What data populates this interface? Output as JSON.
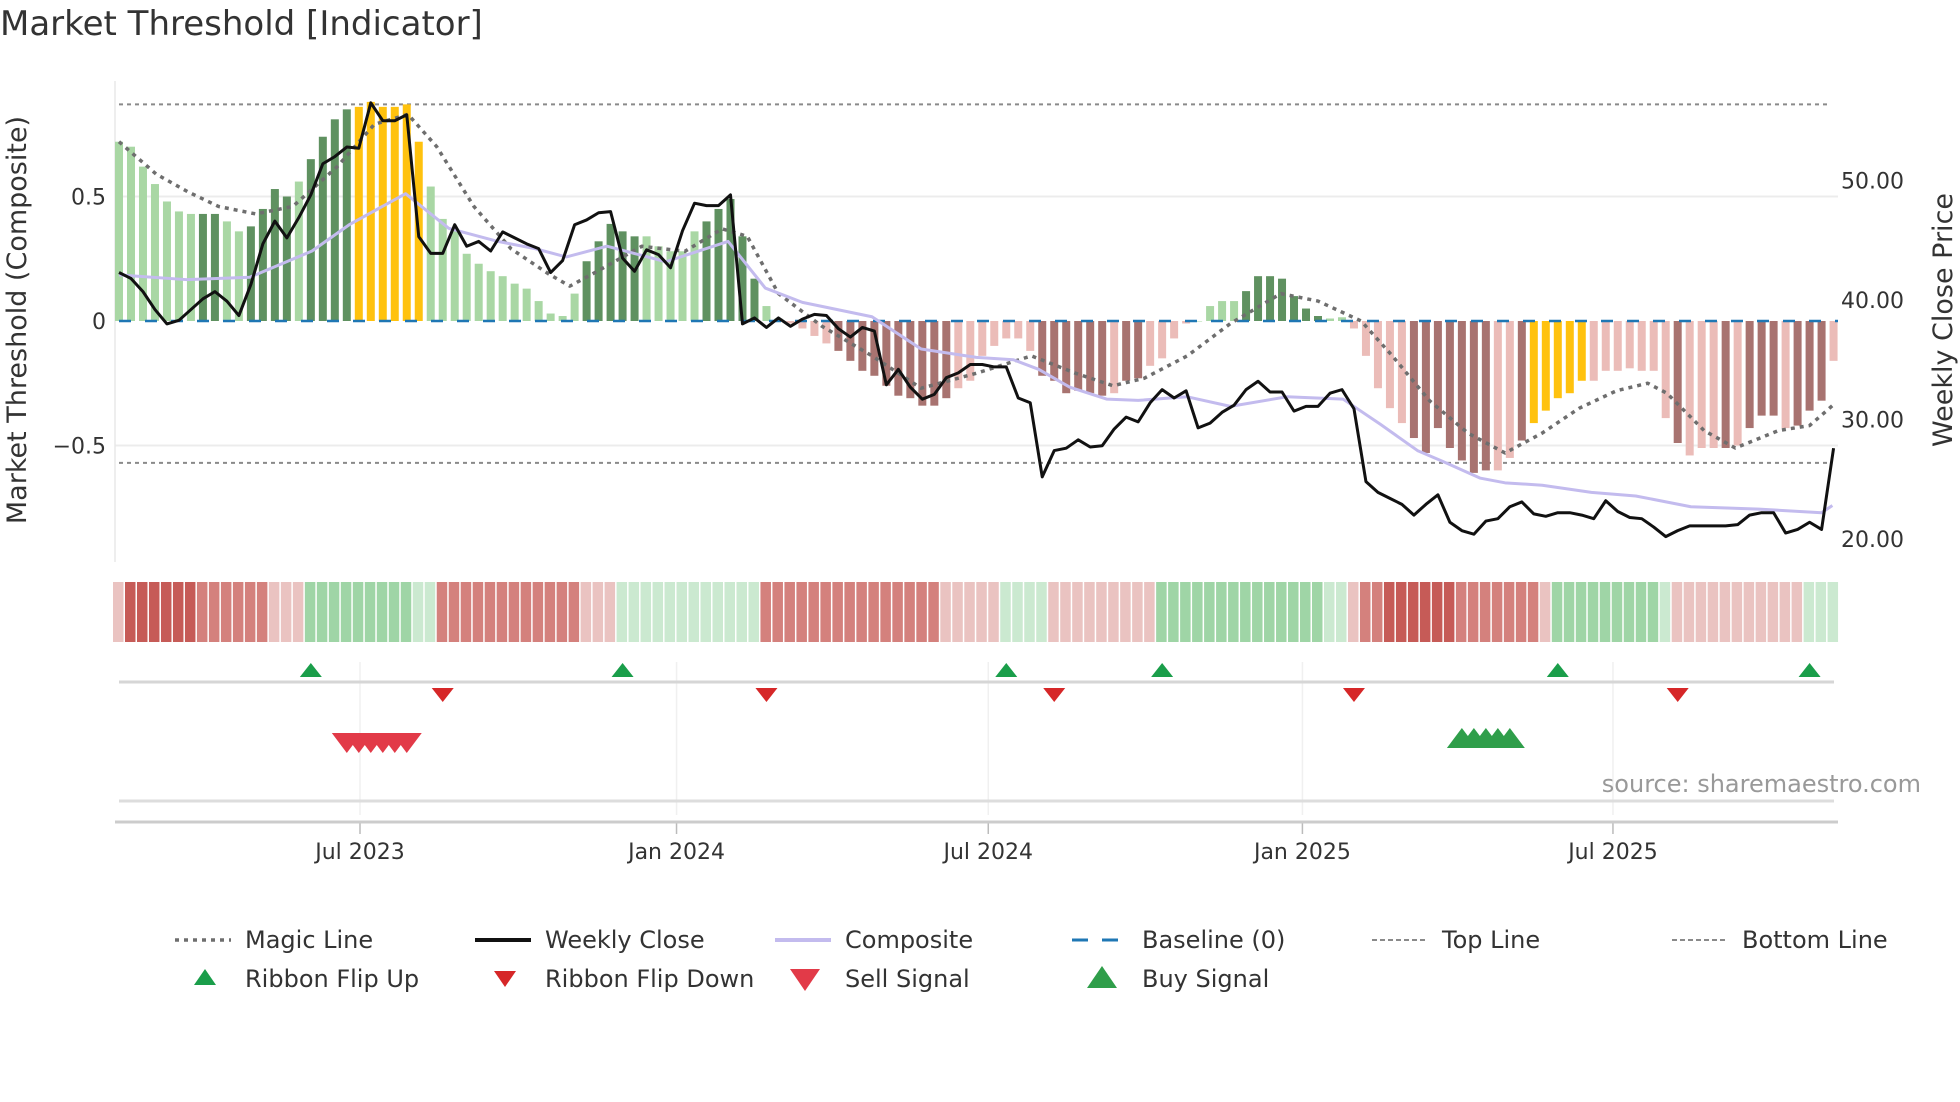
{
  "title": "Market Threshold [Indicator]",
  "source": "source: sharemaestro.com",
  "colors": {
    "light_green": "#a9d7a4",
    "dark_green": "#5f9160",
    "gold": "#ffc20e",
    "light_red": "#ebbcb8",
    "dark_red": "#a87370",
    "close": "#111111",
    "composite": "#c3bbee",
    "magic": "#6e6e6e",
    "baseline": "#1f77b4",
    "guide": "#8a8a8a",
    "flip_up": "#1a9e4a",
    "flip_down": "#d62728",
    "sell": "#e23a48",
    "buy": "#2f9e4a"
  },
  "chart_data": {
    "type": "bar+line",
    "title": "Market Threshold [Indicator]",
    "ylabel_left": "Market Threshold (Composite)",
    "ylabel_right": "Weekly Close Price",
    "left_ticks": [
      {
        "v": 0.5,
        "label": "0.5"
      },
      {
        "v": 0,
        "label": "0"
      },
      {
        "v": -0.5,
        "label": "−0.5"
      }
    ],
    "right_ticks": [
      {
        "v": 50,
        "label": "50.00"
      },
      {
        "v": 40,
        "label": "40.00"
      },
      {
        "v": 30,
        "label": "30.00"
      },
      {
        "v": 20,
        "label": "20.00"
      }
    ],
    "x_ticks": [
      {
        "week": 20.1,
        "label": "Jul 2023"
      },
      {
        "week": 46.5,
        "label": "Jan 2024"
      },
      {
        "week": 72.5,
        "label": "Jul 2024"
      },
      {
        "week": 98.7,
        "label": "Jan 2025"
      },
      {
        "week": 124.6,
        "label": "Jul 2025"
      }
    ],
    "top_line": 0.87,
    "bottom_line": -0.57,
    "baseline": 0,
    "bars": {
      "values": [
        0.72,
        0.7,
        0.62,
        0.55,
        0.48,
        0.44,
        0.43,
        0.43,
        0.43,
        0.4,
        0.36,
        0.38,
        0.45,
        0.53,
        0.5,
        0.56,
        0.65,
        0.74,
        0.81,
        0.85,
        0.86,
        0.88,
        0.86,
        0.86,
        0.87,
        0.72,
        0.54,
        0.41,
        0.36,
        0.27,
        0.23,
        0.2,
        0.18,
        0.15,
        0.13,
        0.08,
        0.03,
        0.02,
        0.11,
        0.24,
        0.32,
        0.39,
        0.36,
        0.34,
        0.34,
        0.3,
        0.28,
        0.28,
        0.36,
        0.4,
        0.45,
        0.49,
        0.34,
        0.17,
        0.06,
        0.01,
        -0.01,
        -0.03,
        -0.06,
        -0.09,
        -0.12,
        -0.16,
        -0.2,
        -0.22,
        -0.26,
        -0.3,
        -0.31,
        -0.34,
        -0.34,
        -0.31,
        -0.27,
        -0.24,
        -0.14,
        -0.1,
        -0.07,
        -0.07,
        -0.12,
        -0.22,
        -0.24,
        -0.29,
        -0.28,
        -0.29,
        -0.3,
        -0.29,
        -0.24,
        -0.23,
        -0.18,
        -0.15,
        -0.07,
        -0.01,
        0.0,
        0.06,
        0.08,
        0.08,
        0.12,
        0.18,
        0.18,
        0.17,
        0.1,
        0.05,
        0.02,
        0.01,
        0.015,
        -0.03,
        -0.14,
        -0.27,
        -0.35,
        -0.41,
        -0.47,
        -0.53,
        -0.43,
        -0.51,
        -0.56,
        -0.61,
        -0.6,
        -0.6,
        -0.55,
        -0.48,
        -0.41,
        -0.36,
        -0.31,
        -0.29,
        -0.24,
        -0.24,
        -0.2,
        -0.2,
        -0.19,
        -0.2,
        -0.2,
        -0.39,
        -0.49,
        -0.54,
        -0.51,
        -0.51,
        -0.51,
        -0.5,
        -0.43,
        -0.38,
        -0.38,
        -0.43,
        -0.42,
        -0.36,
        -0.32,
        -0.16
      ],
      "tones": "llllllldd",
      "tones_full": "lllllllddllddddlddddggggggllllllllllllldddddllllldddddllllllddddddddddlllllllddddddlddlllllllldddddddllllllldddddddlldgggggllllllldllldldddldddllldddllll"
    },
    "weekly_close": [
      42.3,
      41.8,
      40.7,
      39.2,
      38.0,
      38.3,
      39.2,
      40.1,
      40.7,
      39.9,
      38.7,
      41.3,
      44.7,
      46.6,
      45.2,
      46.9,
      48.8,
      51.4,
      52.0,
      52.8,
      52.7,
      56.5,
      55.0,
      55.0,
      55.5,
      45.3,
      43.9,
      43.9,
      46.3,
      44.5,
      44.9,
      44.1,
      45.7,
      45.2,
      44.7,
      44.3,
      42.3,
      43.3,
      46.3,
      46.7,
      47.3,
      47.4,
      43.5,
      42.4,
      44.2,
      43.8,
      42.7,
      45.8,
      48.1,
      47.9,
      47.9,
      48.8,
      38.0,
      38.5,
      37.7,
      38.5,
      37.8,
      38.4,
      38.8,
      38.7,
      37.6,
      36.9,
      37.7,
      37.4,
      32.9,
      34.2,
      32.7,
      31.7,
      32.1,
      33.5,
      33.9,
      34.6,
      34.6,
      34.4,
      34.4,
      31.8,
      31.4,
      25.2,
      27.4,
      27.6,
      28.3,
      27.7,
      27.8,
      29.2,
      30.2,
      29.8,
      31.4,
      32.5,
      31.8,
      32.4,
      29.3,
      29.7,
      30.6,
      31.2,
      32.5,
      33.2,
      32.3,
      32.3,
      30.7,
      31.1,
      31.1,
      32.2,
      32.5,
      30.9,
      24.8,
      23.9,
      23.4,
      22.9,
      22.0,
      22.9,
      23.7,
      21.4,
      20.7,
      20.4,
      21.5,
      21.7,
      22.7,
      23.1,
      22.1,
      21.9,
      22.2,
      22.2,
      22.0,
      21.7,
      23.2,
      22.3,
      21.8,
      21.7,
      21.0,
      20.2,
      20.7,
      21.1,
      21.1,
      21.1,
      21.1,
      21.2,
      22.0,
      22.2,
      22.2,
      20.5,
      20.8,
      21.4,
      20.8,
      27.6
    ],
    "composite": [
      [
        0,
        42.1
      ],
      [
        5.7,
        41.7
      ],
      [
        10.9,
        41.9
      ],
      [
        16.1,
        44.1
      ],
      [
        19.2,
        46.3
      ],
      [
        23.9,
        48.9
      ],
      [
        27.5,
        46.0
      ],
      [
        31.6,
        44.9
      ],
      [
        34.7,
        44.3
      ],
      [
        37.3,
        43.6
      ],
      [
        40.7,
        44.5
      ],
      [
        45.6,
        43.2
      ],
      [
        50.8,
        44.9
      ],
      [
        53.9,
        41.0
      ],
      [
        57,
        39.8
      ],
      [
        62.8,
        38.6
      ],
      [
        66.9,
        35.9
      ],
      [
        71.5,
        35.2
      ],
      [
        74.6,
        35.0
      ],
      [
        76.7,
        34.2
      ],
      [
        79.3,
        32.7
      ],
      [
        82.4,
        31.7
      ],
      [
        85,
        31.6
      ],
      [
        89.1,
        31.9
      ],
      [
        92.7,
        31.1
      ],
      [
        97.4,
        31.9
      ],
      [
        102.1,
        31.7
      ],
      [
        105.2,
        29.6
      ],
      [
        108.3,
        27.4
      ],
      [
        110.4,
        26.5
      ],
      [
        113.5,
        25.1
      ],
      [
        115.6,
        24.7
      ],
      [
        118.7,
        24.5
      ],
      [
        122.8,
        23.9
      ],
      [
        126.5,
        23.6
      ],
      [
        131.1,
        22.7
      ],
      [
        136.8,
        22.5
      ],
      [
        142,
        22.2
      ],
      [
        142.9,
        22.8
      ]
    ],
    "magic_line": [
      [
        0,
        0.72
      ],
      [
        3.1,
        0.59
      ],
      [
        5.7,
        0.52
      ],
      [
        8.3,
        0.46
      ],
      [
        11.4,
        0.43
      ],
      [
        14.5,
        0.46
      ],
      [
        18.2,
        0.62
      ],
      [
        21.3,
        0.79
      ],
      [
        24.1,
        0.83
      ],
      [
        26.5,
        0.7
      ],
      [
        29.6,
        0.46
      ],
      [
        32.7,
        0.29
      ],
      [
        35.8,
        0.19
      ],
      [
        37.6,
        0.14
      ],
      [
        39.9,
        0.2
      ],
      [
        43.6,
        0.3
      ],
      [
        47.2,
        0.28
      ],
      [
        50.3,
        0.37
      ],
      [
        52.4,
        0.34
      ],
      [
        55,
        0.11
      ],
      [
        58.6,
        -0.02
      ],
      [
        62.8,
        -0.14
      ],
      [
        66.9,
        -0.27
      ],
      [
        71.5,
        -0.21
      ],
      [
        76.1,
        -0.14
      ],
      [
        79.8,
        -0.21
      ],
      [
        82.9,
        -0.26
      ],
      [
        85.5,
        -0.23
      ],
      [
        89.1,
        -0.14
      ],
      [
        92.7,
        -0.01
      ],
      [
        96.9,
        0.11
      ],
      [
        100,
        0.08
      ],
      [
        103.6,
        0.0
      ],
      [
        106.2,
        -0.14
      ],
      [
        109.3,
        -0.32
      ],
      [
        112.5,
        -0.45
      ],
      [
        115.6,
        -0.53
      ],
      [
        118.7,
        -0.45
      ],
      [
        121.8,
        -0.35
      ],
      [
        124.9,
        -0.28
      ],
      [
        127.5,
        -0.25
      ],
      [
        129.1,
        -0.29
      ],
      [
        132.2,
        -0.44
      ],
      [
        134.8,
        -0.51
      ],
      [
        138.4,
        -0.44
      ],
      [
        141,
        -0.42
      ],
      [
        142.9,
        -0.34
      ]
    ],
    "ribbon": [
      -1,
      -3,
      -3,
      -3,
      -3,
      -3,
      -3,
      -2,
      -2,
      -2,
      -2,
      -2,
      -2,
      -1,
      -1,
      -1,
      2,
      2,
      2,
      2,
      2,
      2,
      2,
      2,
      2,
      1,
      1,
      -2,
      -2,
      -2,
      -2,
      -2,
      -2,
      -2,
      -2,
      -2,
      -2,
      -2,
      -2,
      -1,
      -1,
      -1,
      1,
      1,
      1,
      1,
      1,
      1,
      1,
      1,
      1,
      1,
      1,
      1,
      -2,
      -2,
      -2,
      -2,
      -2,
      -2,
      -2,
      -2,
      -2,
      -2,
      -2,
      -2,
      -2,
      -2,
      -2,
      -1,
      -1,
      -1,
      -1,
      -1,
      1,
      1,
      1,
      1,
      -1,
      -1,
      -1,
      -1,
      -1,
      -1,
      -1,
      -1,
      -1,
      2,
      2,
      2,
      2,
      2,
      2,
      2,
      2,
      2,
      2,
      2,
      2,
      2,
      2,
      1,
      1,
      -1,
      -2,
      -2,
      -3,
      -3,
      -3,
      -3,
      -3,
      -3,
      -2,
      -2,
      -2,
      -2,
      -2,
      -2,
      -2,
      -1,
      2,
      2,
      2,
      2,
      2,
      2,
      2,
      2,
      2,
      1,
      -1,
      -1,
      -1,
      -1,
      -1,
      -1,
      -1,
      -1,
      -1,
      -1,
      -1,
      1,
      1,
      1
    ],
    "ribbon_flip_up_weeks": [
      16,
      42,
      74,
      87,
      120,
      141
    ],
    "ribbon_flip_down_weeks": [
      27,
      54,
      78,
      103,
      130
    ],
    "sell_signal_weeks": [
      19,
      20,
      21,
      22,
      23,
      24
    ],
    "buy_signal_weeks": [
      112,
      113,
      114,
      115,
      116
    ],
    "legend_position": "bottom",
    "legend": [
      {
        "key": "magic",
        "label": "Magic Line"
      },
      {
        "key": "close",
        "label": "Weekly Close"
      },
      {
        "key": "composite",
        "label": "Composite"
      },
      {
        "key": "baseline",
        "label": "Baseline (0)"
      },
      {
        "key": "top",
        "label": "Top Line"
      },
      {
        "key": "bottom",
        "label": "Bottom Line"
      },
      {
        "key": "flip_up",
        "label": "Ribbon Flip Up"
      },
      {
        "key": "flip_down",
        "label": "Ribbon Flip Down"
      },
      {
        "key": "sell",
        "label": "Sell Signal"
      },
      {
        "key": "buy",
        "label": "Buy Signal"
      }
    ]
  }
}
